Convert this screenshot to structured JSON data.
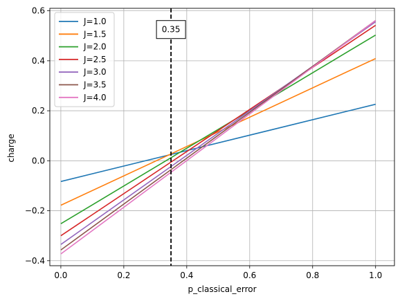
{
  "chart_data": {
    "type": "line",
    "title": "",
    "xlabel": "p_classical_error",
    "ylabel": "charge",
    "xlim": [
      -0.035,
      1.06
    ],
    "ylim": [
      -0.42,
      0.61
    ],
    "xticks": [
      0.0,
      0.2,
      0.4,
      0.6,
      0.8,
      1.0
    ],
    "xtick_labels": [
      "0.0",
      "0.2",
      "0.4",
      "0.6",
      "0.8",
      "1.0"
    ],
    "yticks": [
      -0.4,
      -0.2,
      0.0,
      0.2,
      0.4,
      0.6
    ],
    "ytick_labels": [
      "−0.4",
      "−0.2",
      "0.0",
      "0.2",
      "0.4",
      "0.6"
    ],
    "grid": true,
    "legend_position": "top-left",
    "x": [
      0.0,
      1.0
    ],
    "series": [
      {
        "name": "J=1.0",
        "color": "#1f77b4",
        "values": [
          -0.083,
          0.226
        ]
      },
      {
        "name": "J=1.5",
        "color": "#ff7f0e",
        "values": [
          -0.178,
          0.409
        ]
      },
      {
        "name": "J=2.0",
        "color": "#2ca02c",
        "values": [
          -0.252,
          0.503
        ]
      },
      {
        "name": "J=2.5",
        "color": "#d62728",
        "values": [
          -0.3,
          0.542
        ]
      },
      {
        "name": "J=3.0",
        "color": "#9467bd",
        "values": [
          -0.335,
          0.556
        ]
      },
      {
        "name": "J=3.5",
        "color": "#8c564b",
        "values": [
          -0.357,
          0.561
        ]
      },
      {
        "name": "J=4.0",
        "color": "#e377c2",
        "values": [
          -0.373,
          0.561
        ]
      }
    ],
    "vline": {
      "x": 0.35,
      "style": "dashed",
      "color": "#000000"
    },
    "annotation": {
      "text": "0.35",
      "x": 0.35,
      "y": 0.525
    }
  }
}
